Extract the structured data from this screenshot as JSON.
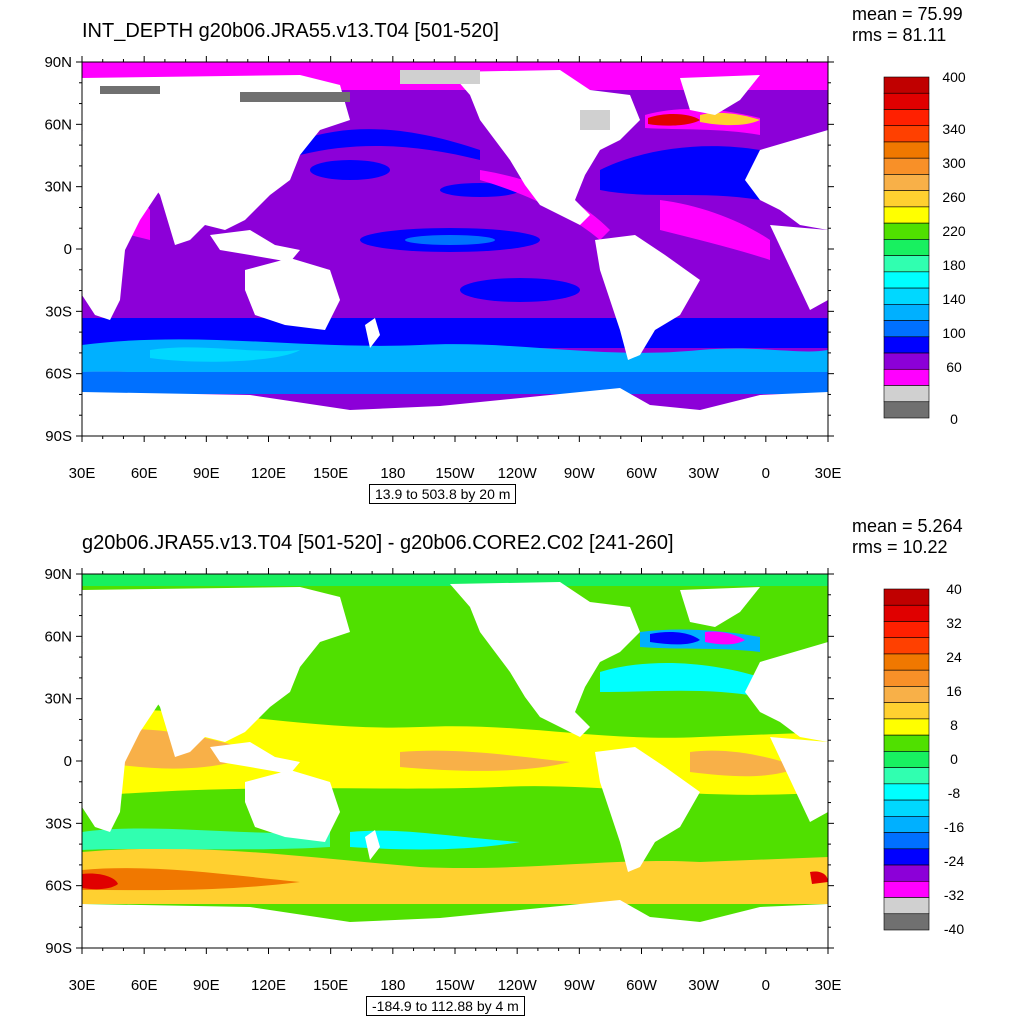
{
  "panels": [
    {
      "title": "INT_DEPTH g20b06.JRA55.v13.T04 [501-520]",
      "mean_label": "mean = 75.99",
      "rms_label": "rms = 81.11",
      "contour_info": "13.9 to 503.8 by 20 m",
      "colorbar": {
        "labels": [
          "400",
          "340",
          "300",
          "260",
          "220",
          "180",
          "140",
          "100",
          "60",
          "0"
        ],
        "colors": [
          "#c00000",
          "#e00000",
          "#ff2000",
          "#ff4000",
          "#f07800",
          "#f89028",
          "#f8b048",
          "#ffd030",
          "#ffff00",
          "#50e000",
          "#18f060",
          "#30ffb0",
          "#00ffff",
          "#00d8ff",
          "#00b0ff",
          "#0070ff",
          "#0000ff",
          "#8c00d8",
          "#ff00ff",
          "#d0d0d0",
          "#707070"
        ]
      }
    },
    {
      "title": "g20b06.JRA55.v13.T04 [501-520] - g20b06.CORE2.C02 [241-260]",
      "mean_label": "mean = 5.264",
      "rms_label": "rms = 10.22",
      "contour_info": "-184.9 to 112.88 by 4 m",
      "colorbar": {
        "labels": [
          "40",
          "32",
          "24",
          "16",
          "8",
          "0",
          "-8",
          "-16",
          "-24",
          "-32",
          "-40"
        ],
        "colors": [
          "#c00000",
          "#e00000",
          "#ff2000",
          "#ff4000",
          "#f07800",
          "#f89028",
          "#f8b048",
          "#ffd030",
          "#ffff00",
          "#50e000",
          "#18f060",
          "#30ffb0",
          "#00ffff",
          "#00d8ff",
          "#00b0ff",
          "#0070ff",
          "#0000ff",
          "#8c00d8",
          "#ff00ff",
          "#d0d0d0",
          "#707070"
        ]
      }
    }
  ],
  "lat_labels": [
    "90N",
    "60N",
    "30N",
    "0",
    "30S",
    "60S",
    "90S"
  ],
  "lon_labels": [
    "30E",
    "60E",
    "90E",
    "120E",
    "150E",
    "180",
    "150W",
    "120W",
    "90W",
    "60W",
    "30W",
    "0",
    "30E"
  ],
  "map_colors": {
    "land": "#ffffff",
    "panel1_base": "#8c00d8",
    "panel2_base": "#50e000"
  }
}
